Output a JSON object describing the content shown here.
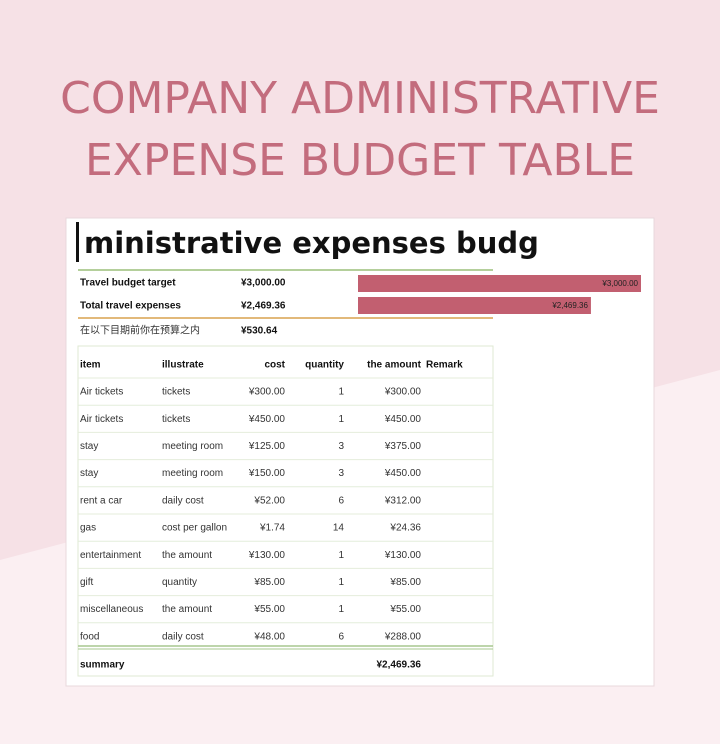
{
  "header": {
    "title_lines": [
      "COMPANY ADMINISTRATIVE",
      "EXPENSE BUDGET TABLE"
    ]
  },
  "sheet": {
    "title": "ministrative expenses budg",
    "summary": [
      {
        "label": "Travel budget target",
        "amount": "¥3,000.00"
      },
      {
        "label": "Total travel expenses",
        "amount": "¥2,469.36"
      },
      {
        "label": "在以下目期前你在预算之内",
        "amount": "¥530.64"
      }
    ],
    "bars": [
      {
        "value": 3000,
        "label": "¥3,000.00"
      },
      {
        "value": 2469.36,
        "label": "¥2,469.36"
      }
    ],
    "table": {
      "columns": [
        "item",
        "illustrate",
        "cost",
        "quantity",
        "the amount",
        "Remark"
      ],
      "rows": [
        [
          "Air tickets",
          "tickets",
          "¥300.00",
          "1",
          "¥300.00"
        ],
        [
          "Air tickets",
          "tickets",
          "¥450.00",
          "1",
          "¥450.00"
        ],
        [
          "stay",
          "meeting room",
          "¥125.00",
          "3",
          "¥375.00"
        ],
        [
          "stay",
          "meeting room",
          "¥150.00",
          "3",
          "¥450.00"
        ],
        [
          "rent a car",
          "daily cost",
          "¥52.00",
          "6",
          "¥312.00"
        ],
        [
          "gas",
          "cost per gallon",
          "¥1.74",
          "14",
          "¥24.36"
        ],
        [
          "entertainment",
          "the amount",
          "¥130.00",
          "1",
          "¥130.00"
        ],
        [
          "gift",
          "quantity",
          "¥85.00",
          "1",
          "¥85.00"
        ],
        [
          "miscellaneous",
          "the amount",
          "¥55.00",
          "1",
          "¥55.00"
        ],
        [
          "food",
          "daily cost",
          "¥48.00",
          "6",
          "¥288.00"
        ]
      ],
      "summary": {
        "label": "summary",
        "amount": "¥2,469.36"
      }
    }
  }
}
